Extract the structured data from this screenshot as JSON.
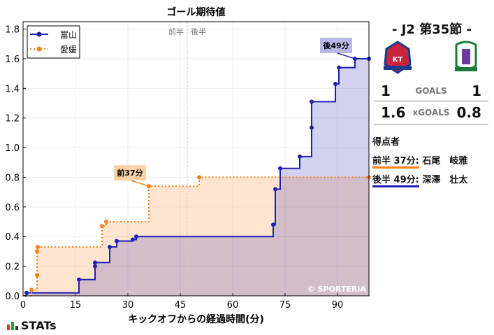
{
  "chart_data": {
    "type": "line",
    "title": "ゴール期待値",
    "xlabel": "キックオフからの経過時間(分)",
    "ylabel": "",
    "xlim": [
      0,
      99
    ],
    "ylim": [
      0,
      1.85
    ],
    "x_ticks": [
      0,
      15,
      30,
      45,
      60,
      75,
      90
    ],
    "y_ticks": [
      0.0,
      0.2,
      0.4,
      0.6,
      0.8,
      1.0,
      1.2,
      1.4,
      1.6,
      1.8
    ],
    "grid": true,
    "legend_placement": "top-left",
    "halftime": 47,
    "half_labels": [
      "前半",
      "後半"
    ],
    "watermark": "© SPORTERIA",
    "series": [
      {
        "name": "富山",
        "color": "#1f1fb4",
        "style": "solid",
        "x": [
          1,
          16,
          20.6,
          20.6,
          24.8,
          26.8,
          31.4,
          32.4,
          71.6,
          72.2,
          73.6,
          79.2,
          82.6,
          82.6,
          89.4,
          90.4,
          95,
          99
        ],
        "y": [
          0.02,
          0.11,
          0.2,
          0.225,
          0.33,
          0.37,
          0.38,
          0.4,
          0.48,
          0.72,
          0.86,
          0.94,
          1.135,
          1.31,
          1.43,
          1.54,
          1.6,
          1.6
        ]
      },
      {
        "name": "愛媛",
        "color": "#ff7f0e",
        "style": "dotted",
        "x": [
          2.4,
          4,
          4,
          4.2,
          22.6,
          23.8,
          36,
          50.4,
          99
        ],
        "y": [
          0.04,
          0.14,
          0.3,
          0.33,
          0.47,
          0.5,
          0.74,
          0.8,
          0.8
        ]
      }
    ],
    "annotations": [
      {
        "text": "前37分",
        "series": 1,
        "x": 36,
        "y": 0.74
      },
      {
        "text": "後49分",
        "series": 0,
        "x": 95,
        "y": 1.6
      }
    ]
  },
  "panel": {
    "round": "- J2 第35節 -",
    "goals_label": "GOALS",
    "home_goals": "1",
    "away_goals": "1",
    "xgoals_label": "xGOALS",
    "home_xg": "1.6",
    "away_xg": "0.8",
    "scorers_title": "得点者",
    "scorers": [
      {
        "time": "前半 37分:",
        "name": "石尾　岐雅",
        "color": "#ff7f0e"
      },
      {
        "time": "後半 49分:",
        "name": "深澤　壮太",
        "color": "#1f1fb4"
      }
    ]
  },
  "brand": "STATs"
}
